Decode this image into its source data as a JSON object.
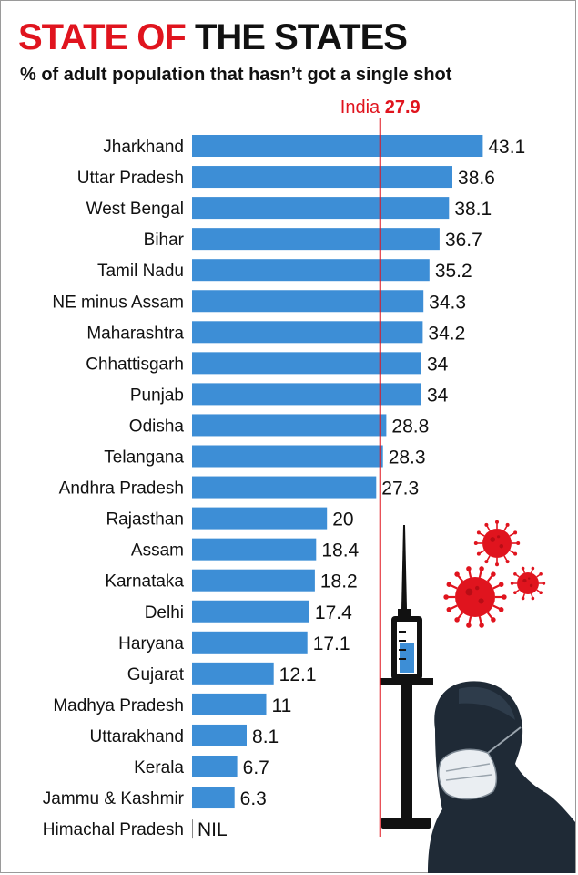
{
  "title_red": "STATE OF",
  "title_black": "THE STATES",
  "subtitle": "% of adult population that hasn’t got a single shot",
  "colors": {
    "bar": "#3d8ed6",
    "reference": "#e0141e",
    "virus": "#e0141e"
  },
  "illustration_icons": [
    "syringe-icon",
    "virus-icon",
    "masked-person-icon"
  ],
  "chart_data": {
    "type": "bar",
    "orientation": "horizontal",
    "title": "STATE OF THE STATES",
    "subtitle": "% of adult population that hasn’t got a single shot",
    "xlim": [
      0,
      45
    ],
    "grid": false,
    "categories": [
      "Jharkhand",
      "Uttar Pradesh",
      "West Bengal",
      "Bihar",
      "Tamil Nadu",
      "NE minus Assam",
      "Maharashtra",
      "Chhattisgarh",
      "Punjab",
      "Odisha",
      "Telangana",
      "Andhra Pradesh",
      "Rajasthan",
      "Assam",
      "Karnataka",
      "Delhi",
      "Haryana",
      "Gujarat",
      "Madhya Pradesh",
      "Uttarakhand",
      "Kerala",
      "Jammu & Kashmir",
      "Himachal Pradesh"
    ],
    "values": [
      43.1,
      38.6,
      38.1,
      36.7,
      35.2,
      34.3,
      34.2,
      34,
      34,
      28.8,
      28.3,
      27.3,
      20,
      18.4,
      18.2,
      17.4,
      17.1,
      12.1,
      11,
      8.1,
      6.7,
      6.3,
      0
    ],
    "value_labels": [
      "43.1",
      "38.6",
      "38.1",
      "36.7",
      "35.2",
      "34.3",
      "34.2",
      "34",
      "34",
      "28.8",
      "28.3",
      "27.3",
      "20",
      "18.4",
      "18.2",
      "17.4",
      "17.1",
      "12.1",
      "11",
      "8.1",
      "6.7",
      "6.3",
      "NIL"
    ],
    "reference_line": {
      "label": "India",
      "value": 27.9,
      "value_label": "27.9"
    }
  }
}
